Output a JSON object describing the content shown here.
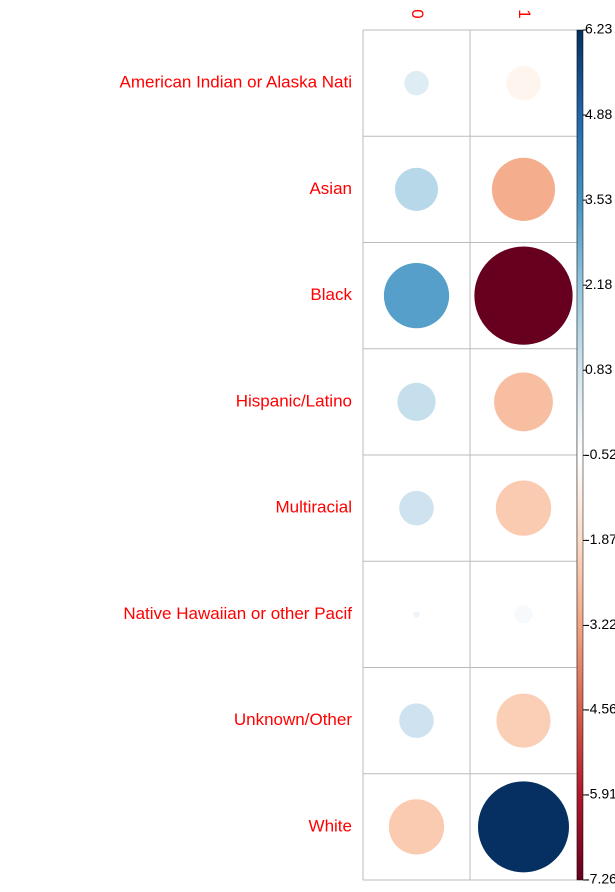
{
  "chart_data": {
    "type": "corrplot",
    "columns": [
      "0",
      "1"
    ],
    "rows": [
      "American Indian or Alaska Nati",
      "Asian",
      "Black",
      "Hispanic/Latino",
      "Multiracial",
      "Native Hawaiian or other Pacif",
      "Unknown/Other",
      "White"
    ],
    "values": [
      [
        0.45,
        -0.9
      ],
      [
        1.4,
        -3.0
      ],
      [
        3.2,
        -7.26
      ],
      [
        1.1,
        -2.6
      ],
      [
        0.9,
        -2.3
      ],
      [
        0.03,
        -0.25
      ],
      [
        0.9,
        -2.2
      ],
      [
        -2.3,
        6.23
      ]
    ],
    "clim": [
      -7.26,
      6.23
    ],
    "cticks": [
      6.23,
      4.88,
      3.53,
      2.18,
      0.83,
      -0.52,
      -1.87,
      -3.22,
      -4.56,
      -5.91,
      -7.26
    ],
    "colormap": [
      "#67001F",
      "#B2182B",
      "#D6604D",
      "#F4A582",
      "#FDDBC7",
      "#FFFFFF",
      "#D1E5F0",
      "#92C5DE",
      "#4393C3",
      "#2166AC",
      "#053061"
    ],
    "label_color": "#FF0000",
    "grid": true
  }
}
